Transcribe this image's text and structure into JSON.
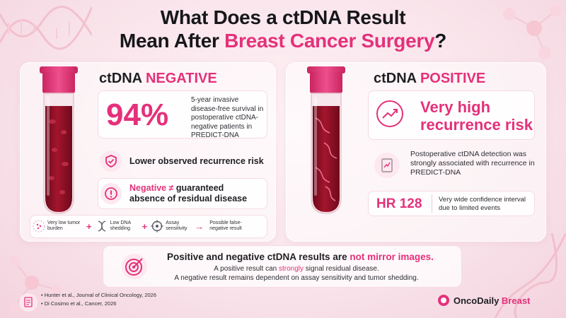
{
  "title": {
    "line1": "What Does a ctDNA Result",
    "line2_plain": "Mean After ",
    "line2_accent": "Breast Cancer Surgery",
    "line2_end": "?"
  },
  "left": {
    "head_plain": "ctDNA ",
    "head_accent": "NEGATIVE",
    "stat_value": "94%",
    "stat_text": "5-year invasive disease-free survival in postoperative ctDNA-negative patients in PREDICT-DNA",
    "lower_risk": "Lower observed recurrence risk",
    "neg_accent": "Negative ≠",
    "neg_plain": " guaranteed",
    "neg_line2": "absence of residual disease",
    "flow": [
      {
        "icon": "dots-icon",
        "label": "Very low tumor burden"
      },
      {
        "icon": "dna-icon",
        "label": "Low DNA shedding"
      },
      {
        "icon": "target-icon",
        "label": "Assay sensitivity"
      },
      {
        "icon": "none",
        "label": "Possible false-negative result"
      }
    ],
    "plus": "+",
    "arrow": "→"
  },
  "right": {
    "head_plain": "ctDNA ",
    "head_accent": "POSITIVE",
    "risk_line1": "Very high",
    "risk_line2": "recurrence risk",
    "detect_text": "Postoperative ctDNA detection was strongly associated with recurrence in PREDICT-DNA",
    "hr_value": "HR 128",
    "hr_text": "Very wide confidence interval due to limited events"
  },
  "bottom": {
    "headline_plain": "Positive and negative ctDNA results are ",
    "headline_accent": "not mirror images.",
    "line2_plain": "A positive result can ",
    "line2_accent": "strongly",
    "line2_end": " signal residual disease.",
    "line3": "A negative result remains dependent on assay sensitivity and tumor shedding."
  },
  "refs": [
    "Hunter et al., Journal of Clinical Oncology, 2026",
    "Di Cosimo et al., Cancer, 2026"
  ],
  "brand": {
    "name": "OncoDaily",
    "accent": " Breast"
  },
  "colors": {
    "accent": "#e4317a",
    "text": "#1f1f24",
    "background": "#fdf2f5",
    "tube_blood": "#8e1024"
  }
}
